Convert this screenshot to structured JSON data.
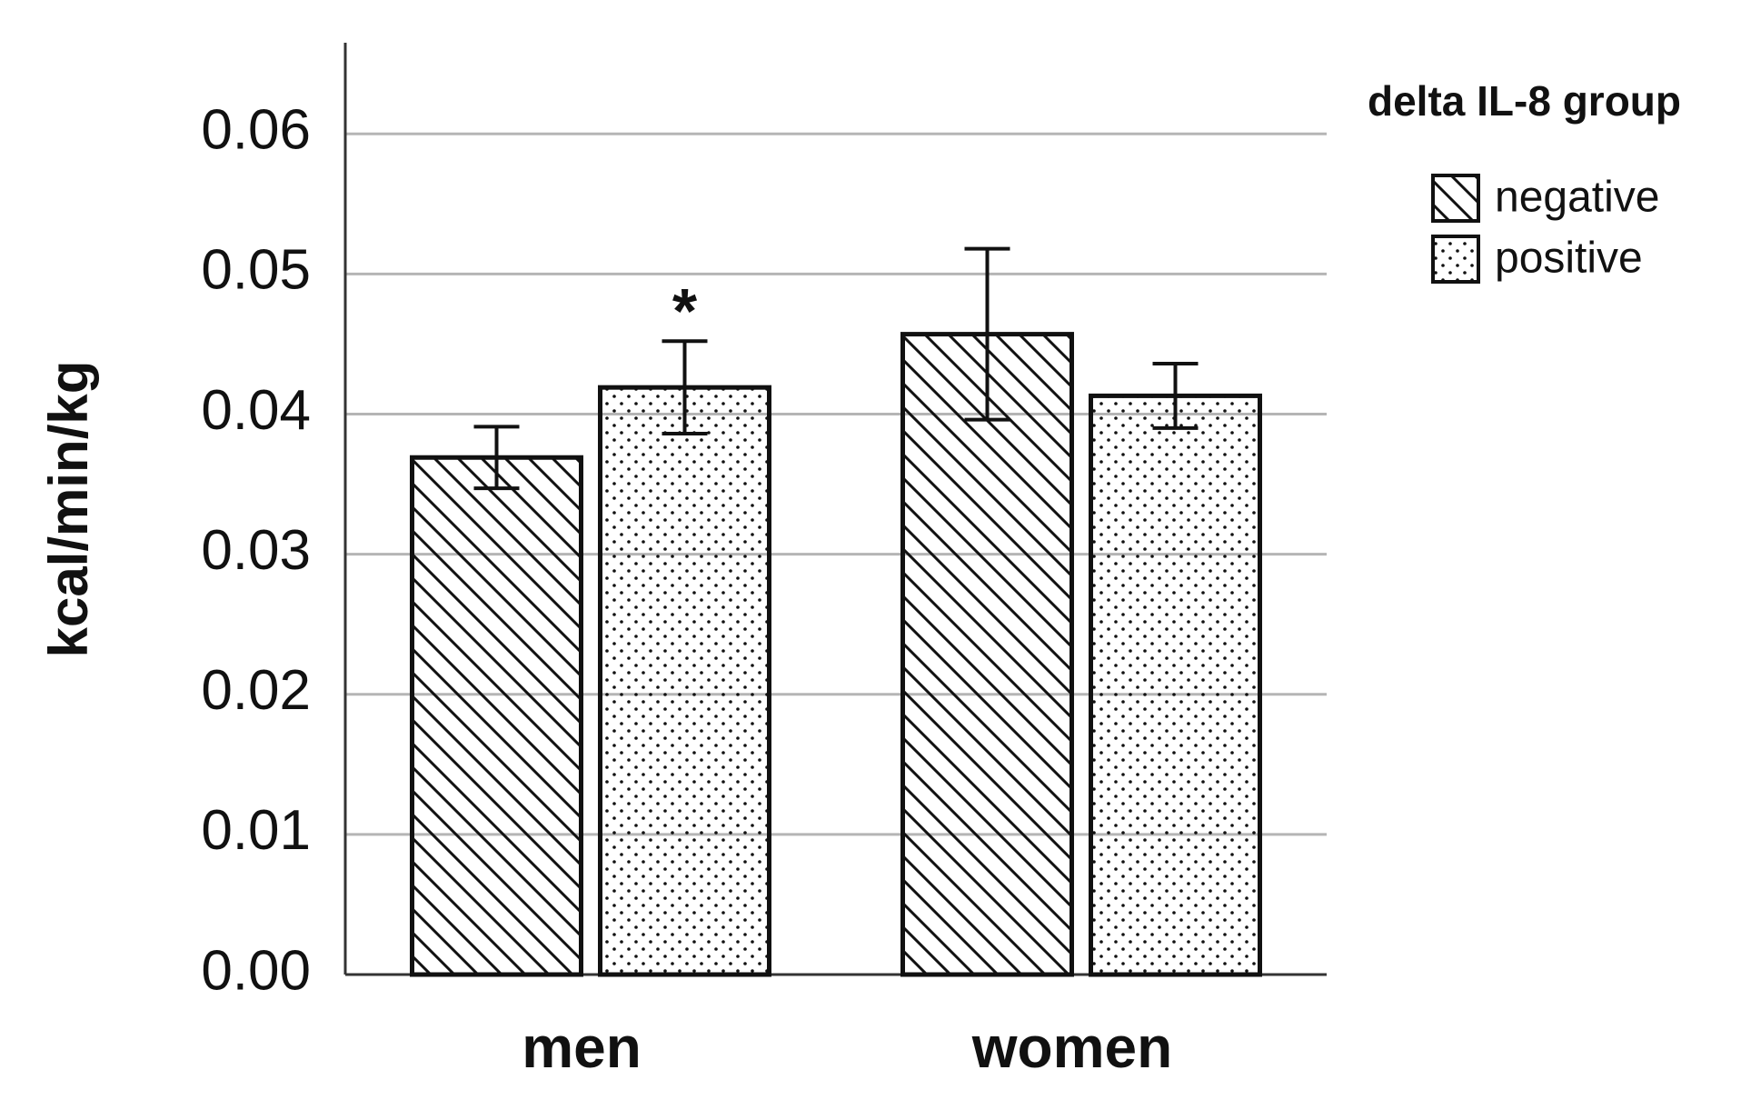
{
  "chart_data": {
    "type": "bar",
    "ylabel": "kcal/min/kg",
    "categories": [
      "men",
      "women"
    ],
    "series": [
      {
        "name": "negative",
        "pattern": "hatch",
        "values": [
          0.0369,
          0.0457
        ],
        "errors": [
          0.0022,
          0.0061
        ]
      },
      {
        "name": "positive",
        "pattern": "dots",
        "values": [
          0.0419,
          0.0413
        ],
        "errors": [
          0.0033,
          0.0023
        ]
      }
    ],
    "ylim": [
      0,
      0.0665
    ],
    "yticks": [
      {
        "value": 0,
        "label": "0.00"
      },
      0.01,
      0.02,
      0.03,
      0.04,
      0.05,
      0.06
    ],
    "grid": true,
    "legend_title": "delta IL-8 group",
    "annotations": [
      "*"
    ]
  }
}
